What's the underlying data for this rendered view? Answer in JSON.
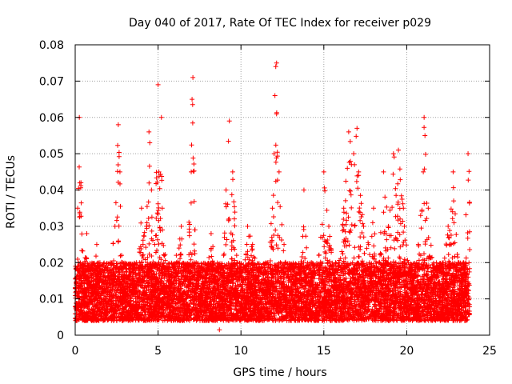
{
  "chart_data": {
    "type": "scatter",
    "title": "Day 040 of 2017, Rate Of TEC Index for receiver p029",
    "xlabel": "GPS time / hours",
    "ylabel": "ROTI / TECUs",
    "xlim": [
      0,
      25
    ],
    "ylim": [
      0,
      0.08
    ],
    "x_ticks": [
      0,
      5,
      10,
      15,
      20,
      25
    ],
    "x_tick_labels": [
      "0",
      "5",
      "10",
      "15",
      "20",
      "25"
    ],
    "y_ticks": [
      0,
      0.01,
      0.02,
      0.03,
      0.04,
      0.05,
      0.06,
      0.07,
      0.08
    ],
    "y_tick_labels": [
      "0",
      "0.01",
      "0.02",
      "0.03",
      "0.04",
      "0.05",
      "0.06",
      "0.07",
      "0.08"
    ],
    "grid": true,
    "marker": "+",
    "series": [
      {
        "name": "ROTI",
        "color": "#ff0000",
        "x": [
          0.05,
          0.15,
          0.25,
          0.35,
          0.5,
          0.7,
          0.9,
          1.1,
          1.3,
          1.5,
          1.8,
          2.1,
          2.4,
          2.6,
          2.7,
          2.8,
          3.1,
          3.4,
          3.7,
          4.0,
          4.3,
          4.45,
          4.5,
          4.6,
          4.8,
          5.0,
          5.05,
          5.2,
          5.25,
          5.5,
          5.8,
          6.1,
          6.4,
          6.7,
          7.0,
          7.05,
          7.1,
          7.3,
          7.6,
          7.9,
          8.2,
          8.5,
          8.7,
          8.8,
          9.1,
          9.3,
          9.5,
          9.8,
          10.1,
          10.4,
          10.7,
          11.0,
          11.3,
          11.6,
          11.9,
          12.0,
          12.05,
          12.1,
          12.15,
          12.3,
          12.6,
          12.9,
          13.2,
          13.5,
          13.8,
          14.1,
          14.4,
          14.7,
          15.0,
          15.3,
          15.6,
          15.9,
          16.2,
          16.5,
          16.8,
          17.0,
          17.1,
          17.4,
          17.7,
          18.0,
          18.3,
          18.6,
          18.9,
          19.2,
          19.5,
          19.8,
          20.1,
          20.4,
          20.7,
          21.0,
          21.05,
          21.1,
          21.3,
          21.6,
          21.9,
          22.2,
          22.5,
          22.8,
          23.1,
          23.4,
          23.7
        ],
        "y": [
          0.012,
          0.035,
          0.06,
          0.042,
          0.018,
          0.028,
          0.01,
          0.015,
          0.025,
          0.008,
          0.012,
          0.018,
          0.03,
          0.058,
          0.045,
          0.022,
          0.01,
          0.014,
          0.02,
          0.035,
          0.03,
          0.056,
          0.053,
          0.04,
          0.025,
          0.069,
          0.045,
          0.06,
          0.035,
          0.018,
          0.012,
          0.022,
          0.03,
          0.016,
          0.045,
          0.065,
          0.071,
          0.02,
          0.01,
          0.015,
          0.028,
          0.018,
          0.0015,
          0.012,
          0.04,
          0.059,
          0.045,
          0.02,
          0.015,
          0.03,
          0.025,
          0.018,
          0.012,
          0.02,
          0.035,
          0.05,
          0.066,
          0.074,
          0.075,
          0.045,
          0.025,
          0.018,
          0.01,
          0.015,
          0.04,
          0.018,
          0.012,
          0.022,
          0.045,
          0.03,
          0.018,
          0.02,
          0.035,
          0.056,
          0.05,
          0.057,
          0.045,
          0.03,
          0.025,
          0.035,
          0.02,
          0.045,
          0.03,
          0.05,
          0.051,
          0.035,
          0.02,
          0.015,
          0.025,
          0.045,
          0.06,
          0.055,
          0.035,
          0.018,
          0.012,
          0.02,
          0.03,
          0.045,
          0.02,
          0.012,
          0.05
        ],
        "baseline_range": [
          0.004,
          0.02
        ]
      }
    ]
  }
}
